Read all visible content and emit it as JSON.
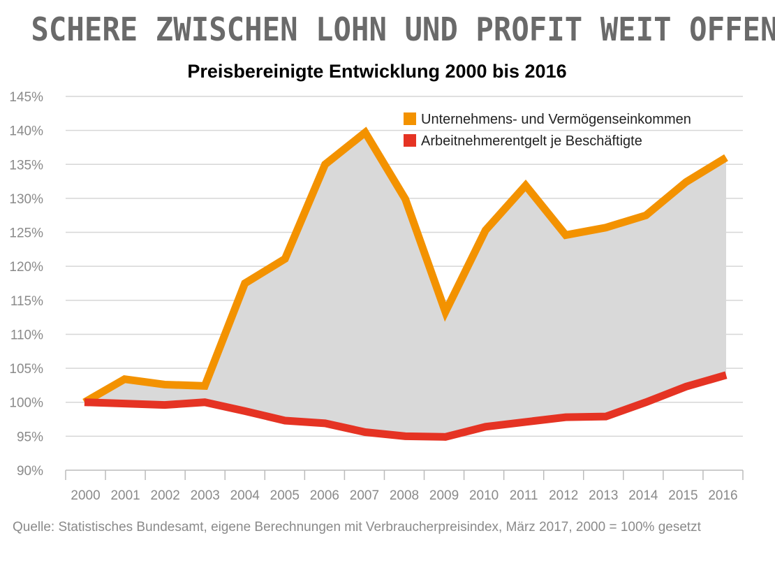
{
  "headline": "SCHERE ZWISCHEN LOHN UND PROFIT WEIT OFFEN",
  "source": "Quelle: Statistisches Bundesamt, eigene Berechnungen mit Verbraucherpreisindex, März 2017, 2000 = 100% gesetzt",
  "chart_data": {
    "type": "line",
    "title": "Preisbereinigte Entwicklung 2000 bis 2016",
    "xlabel": "",
    "ylabel": "",
    "x": [
      "2000",
      "2001",
      "2002",
      "2003",
      "2004",
      "2005",
      "2006",
      "2007",
      "2008",
      "2009",
      "2010",
      "2011",
      "2012",
      "2013",
      "2014",
      "2015",
      "2016"
    ],
    "ylim": [
      90,
      145
    ],
    "yticks": [
      "90%",
      "95%",
      "100%",
      "105%",
      "110%",
      "115%",
      "120%",
      "125%",
      "130%",
      "135%",
      "140%",
      "145%"
    ],
    "grid": true,
    "legend": "top-right",
    "fill_between": "#d9d9d9",
    "series": [
      {
        "name": "Unternehmens- und Vermögenseinkommen",
        "color": "#f39200",
        "values": [
          100,
          103.4,
          102.6,
          102.4,
          117.5,
          121.1,
          135,
          139.7,
          129.9,
          113.3,
          125.3,
          131.9,
          124.6,
          125.7,
          127.5,
          132.4,
          136
        ]
      },
      {
        "name": "Arbeitnehmerentgelt je Beschäftigte",
        "color": "#e53323",
        "values": [
          100,
          99.8,
          99.6,
          100,
          98.7,
          97.3,
          96.9,
          95.6,
          95,
          94.9,
          96.4,
          97.1,
          97.8,
          97.9,
          100,
          102.3,
          104
        ]
      }
    ]
  }
}
